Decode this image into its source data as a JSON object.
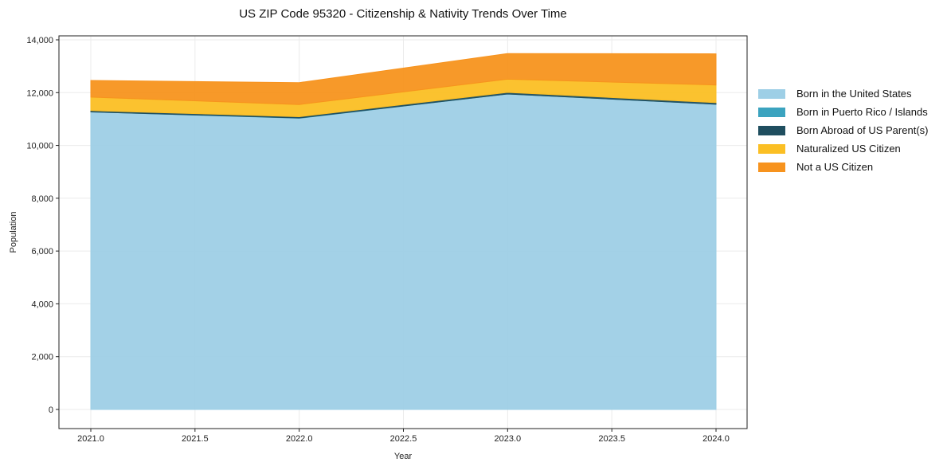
{
  "chart_data": {
    "type": "area",
    "stacked": true,
    "title": "US ZIP Code 95320 - Citizenship & Nativity Trends Over Time",
    "xlabel": "Year",
    "ylabel": "Population",
    "x": [
      2021,
      2022,
      2023,
      2024
    ],
    "xlim": [
      2020.83,
      2024.15
    ],
    "ylim": [
      -700,
      14200
    ],
    "xticks": [
      "2021.0",
      "2021.5",
      "2022.0",
      "2022.5",
      "2023.0",
      "2023.5",
      "2024.0"
    ],
    "xtick_values": [
      2021,
      2021.5,
      2022,
      2022.5,
      2023,
      2023.5,
      2024
    ],
    "yticks": [
      "0",
      "2,000",
      "4,000",
      "6,000",
      "8,000",
      "10,000",
      "12,000",
      "14,000"
    ],
    "ytick_values": [
      0,
      2000,
      4000,
      6000,
      8000,
      10000,
      12000,
      14000
    ],
    "grid": true,
    "legend_position": "right",
    "series": [
      {
        "name": "Born in the United States",
        "color": "#9ecfe6",
        "values": [
          11270,
          11030,
          11950,
          11560
        ]
      },
      {
        "name": "Born in Puerto Rico / Islands",
        "color": "#3ba3bf",
        "values": [
          0,
          10,
          0,
          0
        ]
      },
      {
        "name": "Born Abroad of US Parent(s)",
        "color": "#1f4e5f",
        "values": [
          50,
          50,
          60,
          60
        ]
      },
      {
        "name": "Naturalized US Citizen",
        "color": "#fbbf24",
        "values": [
          510,
          460,
          500,
          670
        ]
      },
      {
        "name": "Not a US Citizen",
        "color": "#f7931e",
        "values": [
          630,
          830,
          970,
          1180
        ]
      }
    ]
  }
}
